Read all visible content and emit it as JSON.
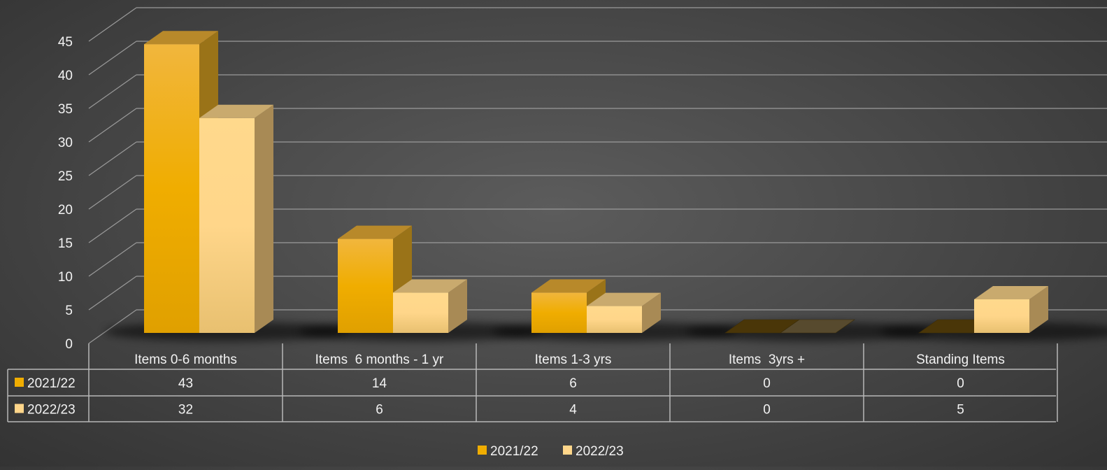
{
  "chart_data": {
    "type": "bar",
    "categories": [
      "Items 0-6 months",
      "Items  6 months - 1 yr",
      "Items 1-3 yrs",
      "Items  3yrs +",
      "Standing Items"
    ],
    "series": [
      {
        "name": "2021/22",
        "values": [
          43,
          14,
          6,
          0,
          0
        ],
        "color": "#f0ad00"
      },
      {
        "name": "2022/23",
        "values": [
          32,
          6,
          4,
          0,
          5
        ],
        "color": "#ffd68a"
      }
    ],
    "title": "",
    "xlabel": "",
    "ylabel": "",
    "ylim": [
      0,
      45
    ],
    "yticks": [
      0,
      5,
      10,
      15,
      20,
      25,
      30,
      35,
      40,
      45
    ],
    "grid": true,
    "legend": "bottom-center",
    "data_table": true,
    "style": "3d-column"
  }
}
